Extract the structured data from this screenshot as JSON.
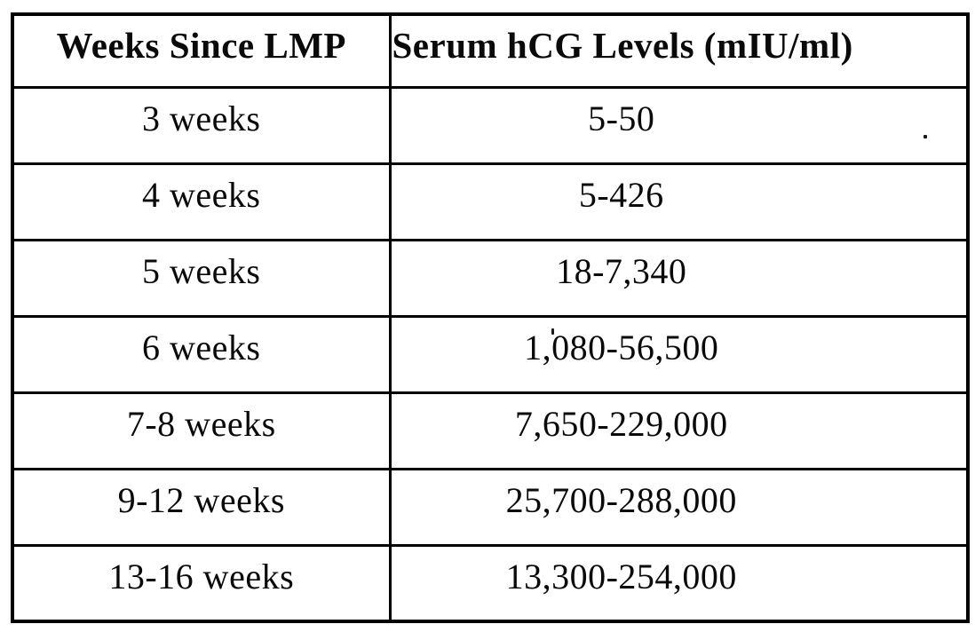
{
  "table": {
    "headers": {
      "weeks": "Weeks Since LMP",
      "hcg": "Serum hCG Levels (mIU/ml)"
    },
    "rows": [
      {
        "weeks": "3 weeks",
        "hcg": "5-50"
      },
      {
        "weeks": "4 weeks",
        "hcg": "5-426"
      },
      {
        "weeks": "5 weeks",
        "hcg": "18-7,340"
      },
      {
        "weeks": "6 weeks",
        "hcg": "1,080-56,500"
      },
      {
        "weeks": "7-8 weeks",
        "hcg": "7,650-229,000"
      },
      {
        "weeks": "9-12 weeks",
        "hcg": "25,700-288,000"
      },
      {
        "weeks": "13-16 weeks",
        "hcg": "13,300-254,000"
      }
    ],
    "colors": {
      "border": "#000000",
      "text": "#0a0a0a",
      "background": "#ffffff"
    }
  }
}
